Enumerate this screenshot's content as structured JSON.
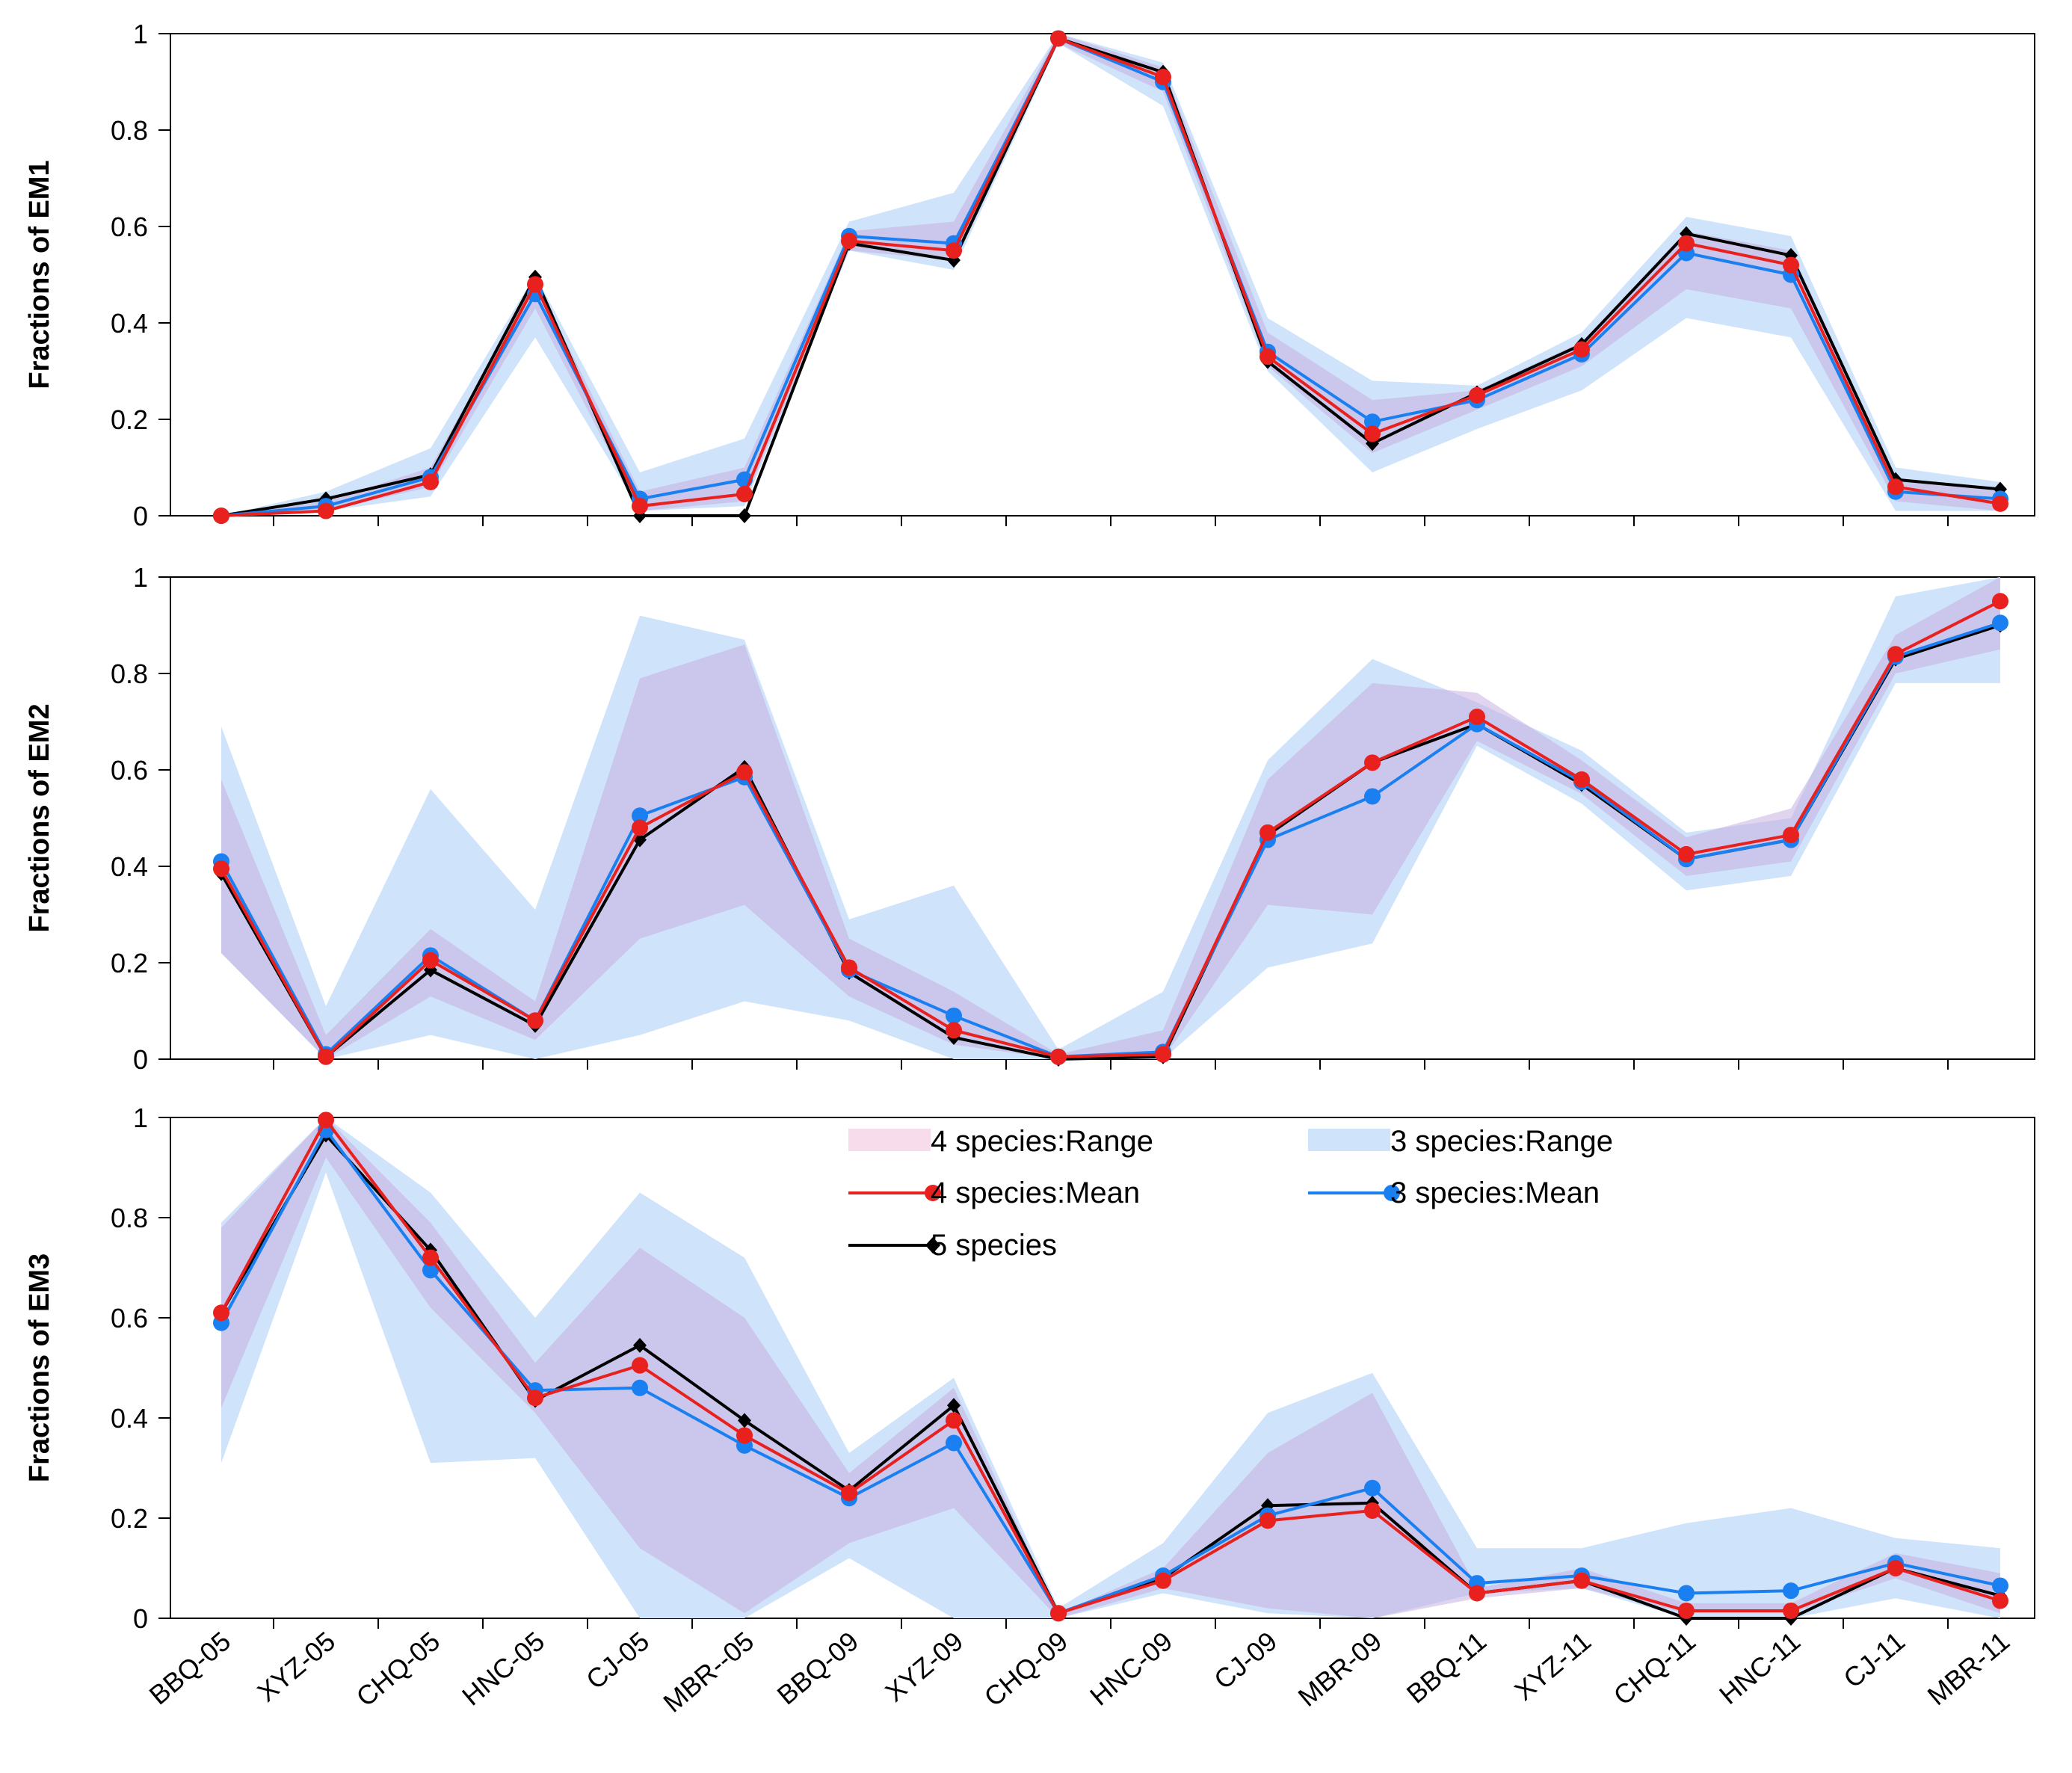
{
  "chart_data": [
    {
      "type": "line",
      "panel": "EM1",
      "ylabel": "Fractions of EM1",
      "ylim": [
        0,
        1
      ],
      "yticks": [
        "0",
        "0.2",
        "0.4",
        "0.6",
        "0.8",
        "1"
      ],
      "categories": [
        "BBQ-05",
        "XYZ-05",
        "CHQ-05",
        "HNC-05",
        "CJ-05",
        "MBR--05",
        "BBQ-09",
        "XYZ-09",
        "CHQ-09",
        "HNC-09",
        "CJ-09",
        "MBR-09",
        "BBQ-11",
        "XYZ-11",
        "CHQ-11",
        "HNC-11",
        "CJ-11",
        "MBR-11"
      ],
      "series": [
        {
          "name": "3 species:Range",
          "kind": "band",
          "lower": [
            0,
            0.01,
            0.04,
            0.37,
            0.01,
            0.02,
            0.55,
            0.51,
            0.98,
            0.85,
            0.3,
            0.09,
            0.18,
            0.26,
            0.41,
            0.37,
            0.01,
            0.01
          ],
          "upper": [
            0,
            0.05,
            0.14,
            0.5,
            0.09,
            0.16,
            0.61,
            0.67,
            1.0,
            0.94,
            0.41,
            0.28,
            0.27,
            0.38,
            0.62,
            0.58,
            0.1,
            0.07
          ]
        },
        {
          "name": "4 species:Range",
          "kind": "band",
          "lower": [
            0,
            0.01,
            0.06,
            0.43,
            0.01,
            0.03,
            0.55,
            0.53,
            0.98,
            0.88,
            0.31,
            0.13,
            0.22,
            0.31,
            0.47,
            0.43,
            0.03,
            0.01
          ],
          "upper": [
            0,
            0.03,
            0.1,
            0.49,
            0.05,
            0.1,
            0.59,
            0.61,
            1.0,
            0.93,
            0.38,
            0.24,
            0.26,
            0.36,
            0.59,
            0.55,
            0.08,
            0.05
          ]
        },
        {
          "name": "5 species",
          "kind": "line",
          "values": [
            0,
            0.035,
            0.085,
            0.495,
            0,
            0,
            0.565,
            0.53,
            0.99,
            0.92,
            0.32,
            0.15,
            0.255,
            0.355,
            0.585,
            0.54,
            0.075,
            0.055
          ]
        },
        {
          "name": "3 species:Mean",
          "kind": "line",
          "values": [
            0,
            0.02,
            0.08,
            0.46,
            0.035,
            0.075,
            0.58,
            0.565,
            0.99,
            0.9,
            0.34,
            0.195,
            0.24,
            0.335,
            0.545,
            0.5,
            0.05,
            0.035
          ]
        },
        {
          "name": "4 species:Mean",
          "kind": "line",
          "values": [
            0,
            0.01,
            0.07,
            0.48,
            0.02,
            0.045,
            0.57,
            0.55,
            0.99,
            0.91,
            0.33,
            0.17,
            0.25,
            0.345,
            0.565,
            0.52,
            0.06,
            0.025
          ]
        }
      ]
    },
    {
      "type": "line",
      "panel": "EM2",
      "ylabel": "Fractions of EM2",
      "ylim": [
        0,
        1
      ],
      "yticks": [
        "0",
        "0.2",
        "0.4",
        "0.6",
        "0.8",
        "1"
      ],
      "categories": [
        "BBQ-05",
        "XYZ-05",
        "CHQ-05",
        "HNC-05",
        "CJ-05",
        "MBR--05",
        "BBQ-09",
        "XYZ-09",
        "CHQ-09",
        "HNC-09",
        "CJ-09",
        "MBR-09",
        "BBQ-11",
        "XYZ-11",
        "CHQ-11",
        "HNC-11",
        "CJ-11",
        "MBR-11"
      ],
      "series": [
        {
          "name": "3 species:Range",
          "kind": "band",
          "lower": [
            0.22,
            0,
            0.05,
            0,
            0.05,
            0.12,
            0.08,
            0,
            0,
            0,
            0.19,
            0.24,
            0.65,
            0.53,
            0.35,
            0.38,
            0.78,
            0.78
          ],
          "upper": [
            0.69,
            0.11,
            0.56,
            0.31,
            0.92,
            0.87,
            0.29,
            0.36,
            0.02,
            0.14,
            0.62,
            0.83,
            0.74,
            0.64,
            0.47,
            0.5,
            0.96,
            1.0
          ]
        },
        {
          "name": "4 species:Range",
          "kind": "band",
          "lower": [
            0.22,
            0,
            0.13,
            0.04,
            0.25,
            0.32,
            0.13,
            0.03,
            0,
            0,
            0.32,
            0.3,
            0.66,
            0.55,
            0.38,
            0.41,
            0.8,
            0.85
          ],
          "upper": [
            0.58,
            0.05,
            0.27,
            0.12,
            0.79,
            0.86,
            0.25,
            0.14,
            0.01,
            0.06,
            0.58,
            0.78,
            0.76,
            0.62,
            0.46,
            0.52,
            0.88,
            1.0
          ]
        },
        {
          "name": "5 species",
          "kind": "line",
          "values": [
            0.385,
            0.005,
            0.185,
            0.07,
            0.455,
            0.605,
            0.18,
            0.045,
            0,
            0.005,
            0.465,
            0.615,
            0.695,
            0.57,
            0.415,
            0.455,
            0.83,
            0.9
          ]
        },
        {
          "name": "3 species:Mean",
          "kind": "line",
          "values": [
            0.41,
            0.01,
            0.215,
            0.08,
            0.505,
            0.585,
            0.185,
            0.09,
            0.005,
            0.015,
            0.455,
            0.545,
            0.695,
            0.575,
            0.415,
            0.455,
            0.835,
            0.905
          ]
        },
        {
          "name": "4 species:Mean",
          "kind": "line",
          "values": [
            0.395,
            0.005,
            0.205,
            0.08,
            0.48,
            0.595,
            0.19,
            0.06,
            0.005,
            0.01,
            0.47,
            0.615,
            0.71,
            0.58,
            0.425,
            0.465,
            0.84,
            0.95
          ]
        }
      ]
    },
    {
      "type": "line",
      "panel": "EM3",
      "ylabel": "Fractions of EM3",
      "ylim": [
        0,
        1
      ],
      "yticks": [
        "0",
        "0.2",
        "0.4",
        "0.6",
        "0.8",
        "1"
      ],
      "categories": [
        "BBQ-05",
        "XYZ-05",
        "CHQ-05",
        "HNC-05",
        "CJ-05",
        "MBR--05",
        "BBQ-09",
        "XYZ-09",
        "CHQ-09",
        "HNC-09",
        "CJ-09",
        "MBR-09",
        "BBQ-11",
        "XYZ-11",
        "CHQ-11",
        "HNC-11",
        "CJ-11",
        "MBR-11"
      ],
      "series": [
        {
          "name": "3 species:Range",
          "kind": "band",
          "lower": [
            0.31,
            0.89,
            0.31,
            0.32,
            0,
            0,
            0.12,
            0,
            0,
            0.05,
            0.01,
            0,
            0.05,
            0.06,
            0,
            0,
            0.04,
            0
          ],
          "upper": [
            0.79,
            1.0,
            0.85,
            0.6,
            0.85,
            0.72,
            0.33,
            0.48,
            0.02,
            0.15,
            0.41,
            0.49,
            0.14,
            0.14,
            0.19,
            0.22,
            0.16,
            0.14
          ]
        },
        {
          "name": "4 species:Range",
          "kind": "band",
          "lower": [
            0.42,
            0.92,
            0.62,
            0.41,
            0.14,
            0.01,
            0.15,
            0.22,
            0,
            0.06,
            0.02,
            0,
            0.04,
            0.06,
            0.01,
            0.01,
            0.08,
            0.01
          ],
          "upper": [
            0.78,
            1.0,
            0.79,
            0.51,
            0.74,
            0.6,
            0.29,
            0.46,
            0.01,
            0.1,
            0.33,
            0.45,
            0.06,
            0.1,
            0.03,
            0.03,
            0.13,
            0.09
          ]
        },
        {
          "name": "5 species",
          "kind": "line",
          "values": [
            0.61,
            0.965,
            0.735,
            0.435,
            0.545,
            0.395,
            0.255,
            0.425,
            0.01,
            0.08,
            0.225,
            0.23,
            0.05,
            0.075,
            0,
            0,
            0.1,
            0.045
          ]
        },
        {
          "name": "3 species:Mean",
          "kind": "line",
          "values": [
            0.59,
            0.975,
            0.695,
            0.455,
            0.46,
            0.345,
            0.24,
            0.35,
            0.01,
            0.085,
            0.205,
            0.26,
            0.07,
            0.085,
            0.05,
            0.055,
            0.11,
            0.065
          ]
        },
        {
          "name": "4 species:Mean",
          "kind": "line",
          "values": [
            0.61,
            0.995,
            0.72,
            0.44,
            0.505,
            0.365,
            0.25,
            0.395,
            0.01,
            0.075,
            0.195,
            0.215,
            0.05,
            0.075,
            0.015,
            0.015,
            0.1,
            0.035
          ]
        }
      ]
    }
  ],
  "legend": {
    "placement": "top-center of EM3 panel",
    "items": [
      {
        "label": "4 species:Range",
        "kind": "band",
        "color": "#f7dcec"
      },
      {
        "label": "3 species:Range",
        "kind": "band",
        "color": "#cfe3fb"
      },
      {
        "label": "4 species:Mean",
        "kind": "line-dot",
        "color": "#e8201e"
      },
      {
        "label": "3 species:Mean",
        "kind": "line-dot",
        "color": "#1a7ff0"
      },
      {
        "label": "5 species",
        "kind": "line-diamond",
        "color": "#000000"
      }
    ]
  },
  "colors": {
    "band3": "#cfe3fb",
    "band4": "#c9b0e0",
    "line5": "#000000",
    "mean3": "#1a7ff0",
    "mean4": "#e8201e",
    "axis": "#000000"
  }
}
